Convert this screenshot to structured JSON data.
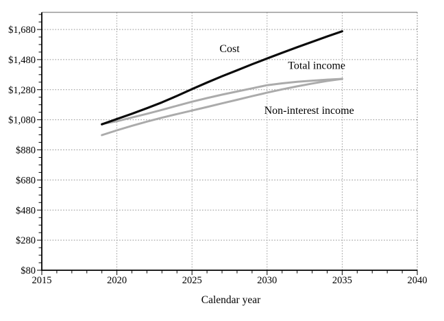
{
  "chart_data": {
    "type": "line",
    "title": "",
    "xlabel": "Calendar year",
    "ylabel": "",
    "x_axis": {
      "min": 2015,
      "max": 2040,
      "major_step": 5,
      "minor_step": 1,
      "tick_values": [
        2015,
        2020,
        2025,
        2030,
        2035,
        2040
      ],
      "tick_labels": [
        "2015",
        "2020",
        "2025",
        "2030",
        "2035",
        "2040"
      ],
      "gridlines_at": [
        2020,
        2025,
        2030,
        2035,
        2040
      ]
    },
    "y_axis": {
      "min": 80,
      "max": 1794,
      "major_step": 200,
      "minor_step": 50,
      "tick_values": [
        80,
        280,
        480,
        680,
        880,
        1080,
        1280,
        1480,
        1680
      ],
      "tick_labels": [
        "$80",
        "$280",
        "$480",
        "$680",
        "$880",
        "$1,080",
        "$1,280",
        "$1,480",
        "$1,680"
      ],
      "gridlines_at": [
        280,
        480,
        680,
        880,
        1080,
        1280,
        1480,
        1680
      ]
    },
    "grid": {
      "style": "dotted",
      "color": "#909090"
    },
    "legend": "inline-labels",
    "x": [
      2019,
      2020,
      2021,
      2022,
      2023,
      2024,
      2025,
      2026,
      2027,
      2028,
      2029,
      2030,
      2031,
      2032,
      2033,
      2034,
      2035
    ],
    "series": [
      {
        "name": "Total income",
        "color": "#ababab",
        "width": 3,
        "values": [
          1052,
          1070,
          1095,
          1120,
          1146,
          1173,
          1200,
          1224,
          1247,
          1268,
          1289,
          1310,
          1322,
          1332,
          1340,
          1347,
          1352
        ]
      },
      {
        "name": "Non-interest income",
        "color": "#ababab",
        "width": 3,
        "values": [
          978,
          1010,
          1040,
          1068,
          1094,
          1118,
          1141,
          1165,
          1189,
          1213,
          1237,
          1260,
          1282,
          1302,
          1321,
          1338,
          1352
        ]
      },
      {
        "name": "Cost",
        "color": "#0a0a0a",
        "width": 3.2,
        "values": [
          1050,
          1085,
          1120,
          1157,
          1196,
          1239,
          1284,
          1327,
          1369,
          1409,
          1449,
          1487,
          1525,
          1562,
          1598,
          1634,
          1668
        ]
      }
    ],
    "annotations": [
      {
        "text": "Cost",
        "x": 2027.5,
        "y": 1530
      },
      {
        "text": "Total income",
        "x": 2033.3,
        "y": 1418
      },
      {
        "text": "Non-interest income",
        "x": 2032.8,
        "y": 1119
      }
    ]
  }
}
